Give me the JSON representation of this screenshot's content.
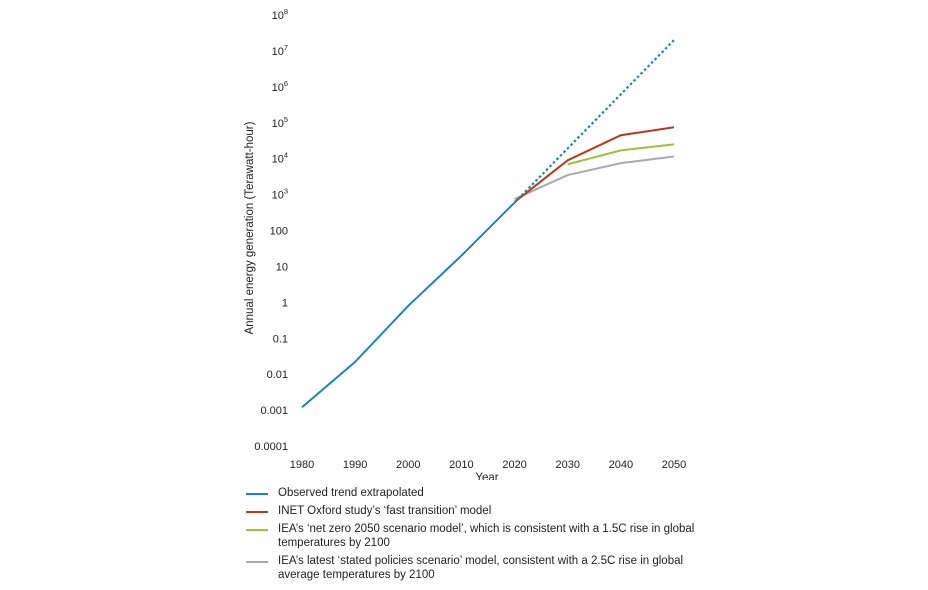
{
  "chart_data": {
    "type": "line",
    "title": "",
    "xlabel": "Year",
    "ylabel": "Annual energy generation (Terawatt-hour)",
    "x_ticks": [
      "1980",
      "1990",
      "2000",
      "2010",
      "2020",
      "2030",
      "2040",
      "2050"
    ],
    "y_scale": "log",
    "y_ticks": [
      {
        "base": "10",
        "exp": "8",
        "text": ""
      },
      {
        "base": "10",
        "exp": "7",
        "text": ""
      },
      {
        "base": "10",
        "exp": "6",
        "text": ""
      },
      {
        "base": "10",
        "exp": "5",
        "text": ""
      },
      {
        "base": "10",
        "exp": "4",
        "text": ""
      },
      {
        "base": "10",
        "exp": "3",
        "text": ""
      },
      {
        "base": "",
        "exp": "",
        "text": "100"
      },
      {
        "base": "",
        "exp": "",
        "text": "10"
      },
      {
        "base": "",
        "exp": "",
        "text": "1"
      },
      {
        "base": "",
        "exp": "",
        "text": "0.1"
      },
      {
        "base": "",
        "exp": "",
        "text": "0.01"
      },
      {
        "base": "",
        "exp": "",
        "text": "0.001"
      },
      {
        "base": "",
        "exp": "",
        "text": "0.0001"
      }
    ],
    "xlim": [
      1980,
      2050
    ],
    "ylim": [
      0.0001,
      100000000
    ],
    "grid": false,
    "legend_position": "bottom",
    "series": [
      {
        "name": "Observed trend extrapolated",
        "color": "#1f86b0",
        "style": "solid",
        "points": [
          [
            1980,
            0.0012
          ],
          [
            1990,
            0.022
          ],
          [
            2000,
            0.8
          ],
          [
            2010,
            20
          ],
          [
            2020,
            600
          ]
        ]
      },
      {
        "name": "Observed trend extrapolated",
        "color": "#1f86b0",
        "style": "dotted",
        "points": [
          [
            2020,
            600
          ],
          [
            2050,
            20000000
          ]
        ]
      },
      {
        "name": "INET Oxford study's ‘fast transition’ model",
        "color": "#b83a1e",
        "style": "solid",
        "points": [
          [
            2020,
            620
          ],
          [
            2030,
            9000
          ],
          [
            2040,
            45000
          ],
          [
            2050,
            75000
          ]
        ]
      },
      {
        "name": "IEA's ‘net zero 2050 scenario model’, which is consistent with a 1.5C rise in global temperatures by 2100",
        "color": "#9dc23b",
        "style": "solid",
        "points": [
          [
            2030,
            7000
          ],
          [
            2040,
            17000
          ],
          [
            2050,
            25000
          ]
        ]
      },
      {
        "name": "IEA's latest ‘stated policies scenario’ model, consistent with a 2.5C rise in global average temperatures by 2100",
        "color": "#a9a8b3",
        "style": "solid",
        "points": [
          [
            2020,
            750
          ],
          [
            2030,
            3500
          ],
          [
            2040,
            7500
          ],
          [
            2050,
            11500
          ]
        ]
      }
    ]
  },
  "legend": [
    {
      "label": "Observed trend extrapolated",
      "color": "#1f86b0"
    },
    {
      "label": "INET Oxford study’s ‘fast transition’ model",
      "color": "#b83a1e"
    },
    {
      "label": "IEA’s ‘net zero 2050 scenario model’, which is consistent with a 1.5C rise in global temperatures by 2100",
      "color": "#9dc23b"
    },
    {
      "label": "IEA’s latest ‘stated policies scenario’ model, consistent with a 2.5C rise in global average temperatures by 2100",
      "color": "#a9a8b3"
    }
  ]
}
